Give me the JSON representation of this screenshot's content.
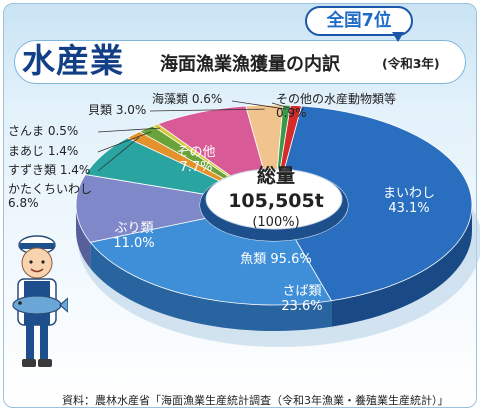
{
  "title": {
    "main": "水産業",
    "subtitle": "海面漁業漁獲量の内訳",
    "year": "(令和3年)",
    "rank_badge": "全国7位"
  },
  "center": {
    "label": "総量",
    "total": "105,505t",
    "percent": "(100%)"
  },
  "group_label": "魚類 95.6%",
  "source": "資料：農林水産省「海面漁業生産統計調査（令和3年漁業・養殖業生産統計）」",
  "chart_data": {
    "type": "pie",
    "style": "3d-donut",
    "total": "105,505t",
    "slices": [
      {
        "name": "まいわし",
        "value": 43.1,
        "color": "#2a6fbf",
        "dark": "#1a4a86",
        "label": "まいわし",
        "pct": "43.1%"
      },
      {
        "name": "さば類",
        "value": 23.6,
        "color": "#3f8fd8",
        "dark": "#28649f",
        "label": "さば類",
        "pct": "23.6%"
      },
      {
        "name": "ぶり類",
        "value": 11.0,
        "color": "#7f88c8",
        "dark": "#565f99",
        "label": "ぶり類",
        "pct": "11.0%"
      },
      {
        "name": "かたくちいわし",
        "value": 6.8,
        "color": "#29a4a1",
        "dark": "#1a716f",
        "label": "かたくちいわし",
        "pct": "6.8%"
      },
      {
        "name": "すずき類",
        "value": 1.4,
        "color": "#e3922c",
        "dark": "#a86418",
        "label": "すずき類",
        "pct": "1.4%"
      },
      {
        "name": "まあじ",
        "value": 1.4,
        "color": "#6aa33a",
        "dark": "#497627",
        "label": "まあじ",
        "pct": "1.4%"
      },
      {
        "name": "さんま",
        "value": 0.5,
        "color": "#d6c83a",
        "dark": "#9a8f22",
        "label": "さんま",
        "pct": "0.5%"
      },
      {
        "name": "その他",
        "value": 7.7,
        "color": "#d85a97",
        "dark": "#a03c6c",
        "label": "その他",
        "pct": "7.7%"
      },
      {
        "name": "貝類",
        "value": 3.0,
        "color": "#f0c48c",
        "dark": "#b48a58",
        "label": "貝類",
        "pct": "3.0%"
      },
      {
        "name": "海藻類",
        "value": 0.6,
        "color": "#3a9a48",
        "dark": "#26702f",
        "label": "海藻類",
        "pct": "0.6%"
      },
      {
        "name": "その他の水産動物類等",
        "value": 0.9,
        "color": "#d62b2b",
        "dark": "#971b1b",
        "label": "その他の水産動物類等",
        "pct": "0.9%"
      }
    ]
  }
}
